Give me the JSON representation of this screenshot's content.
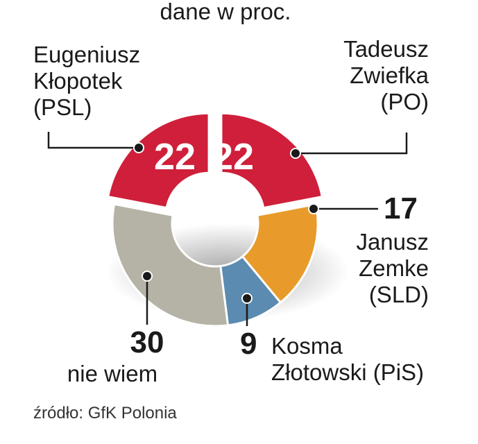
{
  "chart_data": {
    "type": "pie",
    "subtitle": "dane w proc.",
    "source": "źródło: GfK Polonia",
    "slices": [
      {
        "name_lines": [
          "Tadeusz",
          "Zwiefka",
          "(PO)"
        ],
        "value": 22,
        "color": "#cf1f3a"
      },
      {
        "name_lines": [
          "Janusz",
          "Zemke",
          "(SLD)"
        ],
        "value": 17,
        "color": "#e89b2a"
      },
      {
        "name_lines": [
          "Kosma",
          "Złotowski (PiS)"
        ],
        "value": 9,
        "color": "#5b8bb0"
      },
      {
        "name_lines": [
          "nie wiem"
        ],
        "value": 30,
        "color": "#b5b3a6"
      },
      {
        "name_lines": [
          "Eugeniusz",
          "Kłopotek",
          "(PSL)"
        ],
        "value": 22,
        "color": "#cf1f3a"
      }
    ]
  }
}
